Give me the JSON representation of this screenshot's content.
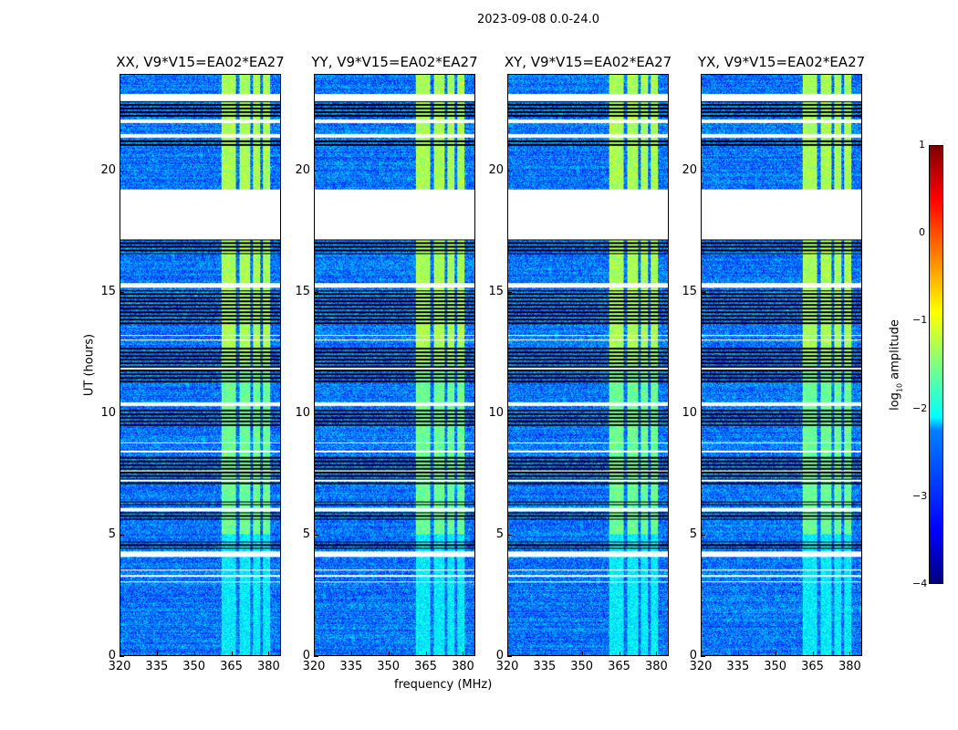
{
  "suptitle": "2023-09-08 0.0-24.0",
  "chart_data": {
    "type": "heatmap",
    "title": "2023-09-08 0.0-24.0",
    "xlabel": "frequency (MHz)",
    "ylabel": "UT (hours)",
    "xlim": [
      320,
      385
    ],
    "ylim": [
      0,
      24
    ],
    "xticks": [
      "320",
      "335",
      "350",
      "365",
      "380"
    ],
    "xtick_values": [
      320,
      335,
      350,
      365,
      380
    ],
    "yticks": [
      "0",
      "5",
      "10",
      "15",
      "20"
    ],
    "ytick_values": [
      0,
      5,
      10,
      15,
      20
    ],
    "panels": [
      {
        "title": "XX, V9*V15=EA02*EA27"
      },
      {
        "title": "YY, V9*V15=EA02*EA27"
      },
      {
        "title": "XY, V9*V15=EA02*EA27"
      },
      {
        "title": "YX, V9*V15=EA02*EA27"
      }
    ],
    "background_log_amplitude": -2.8,
    "rfi_bands_mhz": [
      [
        361,
        367
      ],
      [
        368.5,
        373
      ],
      [
        374,
        377
      ],
      [
        378,
        381
      ]
    ],
    "rfi_log_amplitude": -1.6,
    "flagged_hours": [
      [
        17.2,
        19.25
      ],
      [
        22.9,
        23.2
      ],
      [
        22.0,
        22.15
      ],
      [
        21.4,
        21.55
      ],
      [
        15.2,
        15.4
      ],
      [
        11.8,
        11.9
      ],
      [
        10.3,
        10.45
      ],
      [
        5.95,
        6.1
      ],
      [
        4.05,
        4.3
      ],
      [
        7.2,
        7.25
      ],
      [
        7.6,
        7.65
      ],
      [
        8.4,
        8.45
      ],
      [
        8.75,
        8.8
      ],
      [
        3.0,
        3.05
      ],
      [
        3.25,
        3.3
      ],
      [
        3.5,
        3.55
      ],
      [
        13.0,
        13.05
      ],
      [
        13.2,
        13.25
      ]
    ],
    "dropout_hours": [
      [
        16.6,
        17.2
      ],
      [
        22.2,
        23.0
      ],
      [
        21.0,
        21.35
      ],
      [
        13.6,
        15.1
      ],
      [
        11.2,
        12.8
      ],
      [
        9.4,
        10.2
      ],
      [
        7.0,
        8.2
      ],
      [
        5.6,
        5.9
      ],
      [
        4.4,
        4.7
      ],
      [
        6.2,
        6.35
      ]
    ],
    "colorbar": {
      "label": "log10 amplitude",
      "range": [
        -4,
        1
      ],
      "ticks": [
        "1",
        "0",
        "−1",
        "−2",
        "−3",
        "−4"
      ],
      "colormap": "jet"
    }
  }
}
